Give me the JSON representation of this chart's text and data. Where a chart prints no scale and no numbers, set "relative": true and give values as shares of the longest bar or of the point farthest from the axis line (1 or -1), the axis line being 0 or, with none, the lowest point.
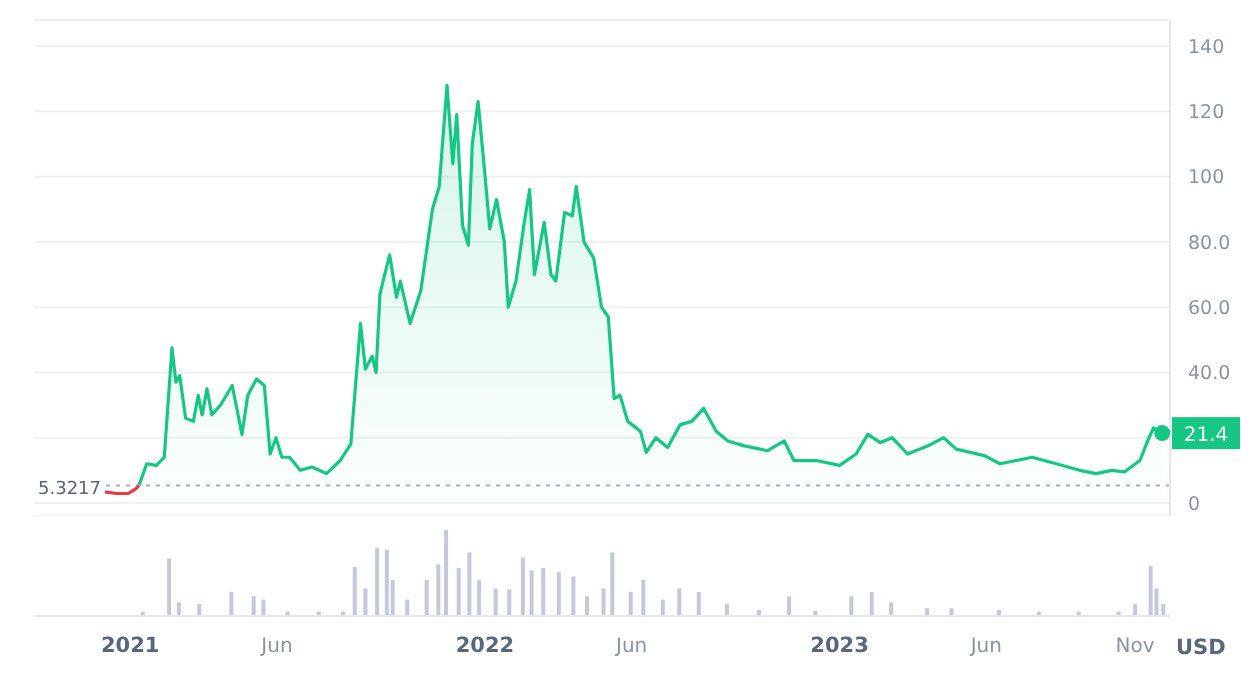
{
  "chart_data": [
    {
      "type": "line",
      "ylabel": "USD",
      "xlim": [
        "2020-09-24",
        "2023-12-07"
      ],
      "ylim": [
        -4,
        148
      ],
      "yticks": [
        {
          "value": 0,
          "label": "0"
        },
        {
          "value": 20,
          "label": null
        },
        {
          "value": 40,
          "label": "40.0"
        },
        {
          "value": 60,
          "label": "60.0"
        },
        {
          "value": 80,
          "label": "80.0"
        },
        {
          "value": 100,
          "label": "100"
        },
        {
          "value": 120,
          "label": "120"
        },
        {
          "value": 140,
          "label": "140"
        }
      ],
      "grid": "y",
      "tick_labels": "y",
      "ref_lines": [
        {
          "axis": "y",
          "value": 5.3217,
          "label": "5.3217",
          "color": "#a6b0c3",
          "line_style": "dotted"
        }
      ],
      "annotations": [
        {
          "text": "21.4",
          "x": "2023-11-29",
          "y": 21.4
        }
      ],
      "series": [
        {
          "type": "line",
          "color": "#ea3943",
          "x": [
            "2020-12-06",
            "2020-12-18",
            "2020-12-30",
            "2021-01-07",
            "2021-01-10"
          ],
          "values": [
            3.4,
            2.9,
            2.9,
            4.4,
            5.3
          ]
        },
        {
          "type": "area",
          "color": "#16c784",
          "x": [
            "2021-01-10",
            "2021-01-18",
            "2021-01-28",
            "2021-02-05",
            "2021-02-13",
            "2021-02-17",
            "2021-02-21",
            "2021-02-27",
            "2021-03-07",
            "2021-03-12",
            "2021-03-16",
            "2021-03-21",
            "2021-03-26",
            "2021-04-04",
            "2021-04-16",
            "2021-04-26",
            "2021-05-02",
            "2021-05-11",
            "2021-05-19",
            "2021-05-25",
            "2021-05-31",
            "2021-06-06",
            "2021-06-14",
            "2021-06-25",
            "2021-07-07",
            "2021-07-22",
            "2021-08-05",
            "2021-08-16",
            "2021-08-26",
            "2021-08-31",
            "2021-09-07",
            "2021-09-11",
            "2021-09-15",
            "2021-09-19",
            "2021-09-25",
            "2021-10-02",
            "2021-10-06",
            "2021-10-16",
            "2021-10-27",
            "2021-11-08",
            "2021-11-15",
            "2021-11-23",
            "2021-11-29",
            "2021-12-03",
            "2021-12-09",
            "2021-12-15",
            "2021-12-19",
            "2021-12-25",
            "2021-12-31",
            "2022-01-06",
            "2022-01-13",
            "2022-01-21",
            "2022-01-25",
            "2022-02-02",
            "2022-02-10",
            "2022-02-16",
            "2022-02-21",
            "2022-03-03",
            "2022-03-10",
            "2022-03-15",
            "2022-03-24",
            "2022-04-01",
            "2022-04-05",
            "2022-04-13",
            "2022-04-23",
            "2022-05-01",
            "2022-05-08",
            "2022-05-14",
            "2022-05-20",
            "2022-05-28",
            "2022-06-10",
            "2022-06-16",
            "2022-06-26",
            "2022-07-08",
            "2022-07-21",
            "2022-08-02",
            "2022-08-14",
            "2022-08-27",
            "2022-09-08",
            "2022-09-25",
            "2022-10-19",
            "2022-11-05",
            "2022-11-15",
            "2022-12-08",
            "2023-01-01",
            "2023-01-18",
            "2023-01-30",
            "2023-02-12",
            "2023-02-24",
            "2023-03-12",
            "2023-04-02",
            "2023-04-18",
            "2023-05-01",
            "2023-05-30",
            "2023-06-15",
            "2023-07-18",
            "2023-08-12",
            "2023-09-05",
            "2023-09-22",
            "2023-10-08",
            "2023-10-21",
            "2023-11-06",
            "2023-11-14",
            "2023-11-20",
            "2023-11-29"
          ],
          "values": [
            5.3,
            12,
            11.5,
            14,
            47.5,
            37,
            39,
            26,
            25,
            33,
            27,
            35,
            27,
            30,
            36,
            21,
            33,
            38,
            36,
            15,
            20,
            14,
            14,
            10,
            11,
            9,
            13,
            18,
            55,
            41,
            45,
            40,
            64,
            69,
            76,
            63,
            68,
            55,
            65,
            90,
            97,
            128,
            104,
            119,
            85,
            79,
            110,
            123,
            104,
            84,
            93,
            80,
            60,
            68,
            85,
            96,
            70,
            86,
            70,
            68,
            89,
            88,
            97,
            80,
            75,
            60,
            57,
            32,
            33,
            25,
            22,
            15.5,
            20,
            17,
            24,
            25,
            29,
            22,
            19,
            17.5,
            16,
            19,
            13,
            13,
            11.5,
            15,
            21,
            18.5,
            20,
            15,
            17.5,
            20,
            16.5,
            14.5,
            12,
            14,
            12,
            10,
            9,
            10,
            9.5,
            13,
            19,
            23,
            21.4
          ]
        }
      ]
    },
    {
      "type": "bar",
      "relative": true,
      "color": "#c3c8da",
      "tick_labels": "x",
      "xlim": [
        "2020-09-24",
        "2023-12-07"
      ],
      "xticks": [
        {
          "value": "2021-01-01",
          "label": "2021"
        },
        {
          "value": "2021-06-01",
          "label": "Jun"
        },
        {
          "value": "2022-01-01",
          "label": "2022"
        },
        {
          "value": "2022-06-01",
          "label": "Jun"
        },
        {
          "value": "2023-01-01",
          "label": "2023"
        },
        {
          "value": "2023-06-01",
          "label": "Jun"
        },
        {
          "value": "2023-11-01",
          "label": "Nov"
        }
      ],
      "x": [
        "2021-01-15",
        "2021-02-11",
        "2021-02-21",
        "2021-03-14",
        "2021-04-16",
        "2021-05-09",
        "2021-05-19",
        "2021-06-13",
        "2021-07-15",
        "2021-08-09",
        "2021-08-21",
        "2021-09-01",
        "2021-09-13",
        "2021-09-23",
        "2021-09-29",
        "2021-10-14",
        "2021-11-03",
        "2021-11-15",
        "2021-11-23",
        "2021-12-06",
        "2021-12-17",
        "2021-12-27",
        "2022-01-13",
        "2022-01-27",
        "2022-02-10",
        "2022-02-19",
        "2022-03-03",
        "2022-03-19",
        "2022-04-03",
        "2022-04-17",
        "2022-05-04",
        "2022-05-13",
        "2022-06-01",
        "2022-06-14",
        "2022-07-04",
        "2022-07-21",
        "2022-08-10",
        "2022-09-08",
        "2022-10-11",
        "2022-11-11",
        "2022-12-08",
        "2023-01-14",
        "2023-02-04",
        "2023-02-24",
        "2023-04-02",
        "2023-04-27",
        "2023-06-15",
        "2023-07-26",
        "2023-09-05",
        "2023-10-16",
        "2023-11-02",
        "2023-11-18",
        "2023-11-24",
        "2023-12-01"
      ],
      "values": [
        0.05,
        0.67,
        0.16,
        0.14,
        0.28,
        0.23,
        0.19,
        0.05,
        0.05,
        0.05,
        0.57,
        0.32,
        0.79,
        0.77,
        0.42,
        0.19,
        0.42,
        0.6,
        1,
        0.56,
        0.74,
        0.42,
        0.32,
        0.31,
        0.68,
        0.53,
        0.56,
        0.51,
        0.46,
        0.23,
        0.32,
        0.74,
        0.28,
        0.42,
        0.19,
        0.32,
        0.28,
        0.14,
        0.07,
        0.23,
        0.06,
        0.23,
        0.28,
        0.16,
        0.09,
        0.09,
        0.07,
        0.05,
        0.05,
        0.05,
        0.14,
        0.58,
        0.32,
        0.14
      ]
    }
  ]
}
